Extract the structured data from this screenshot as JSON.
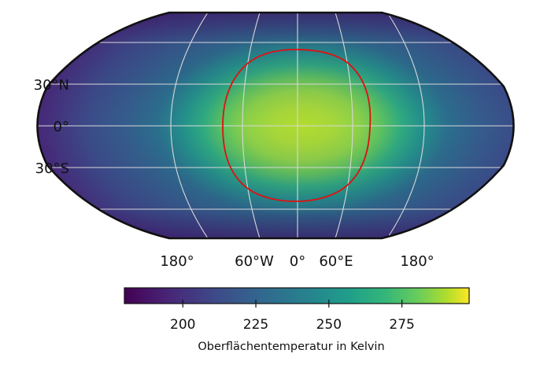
{
  "map": {
    "projection": "robinson-like",
    "graticule_color": "#d8d8d8",
    "outline_color": "#111111",
    "habitable_contour_color": "#e01010",
    "lat_labels": [
      "30°N",
      "0°",
      "30°S"
    ],
    "lon_labels": [
      "180°",
      "60°W",
      "0°",
      "60°E",
      "180°"
    ]
  },
  "colorbar": {
    "colormap": "viridis",
    "min": 180,
    "max": 298,
    "ticks": [
      "200",
      "225",
      "250",
      "275"
    ],
    "tick_values": [
      200,
      225,
      250,
      275
    ],
    "label": "Oberflächentemperatur in Kelvin"
  }
}
